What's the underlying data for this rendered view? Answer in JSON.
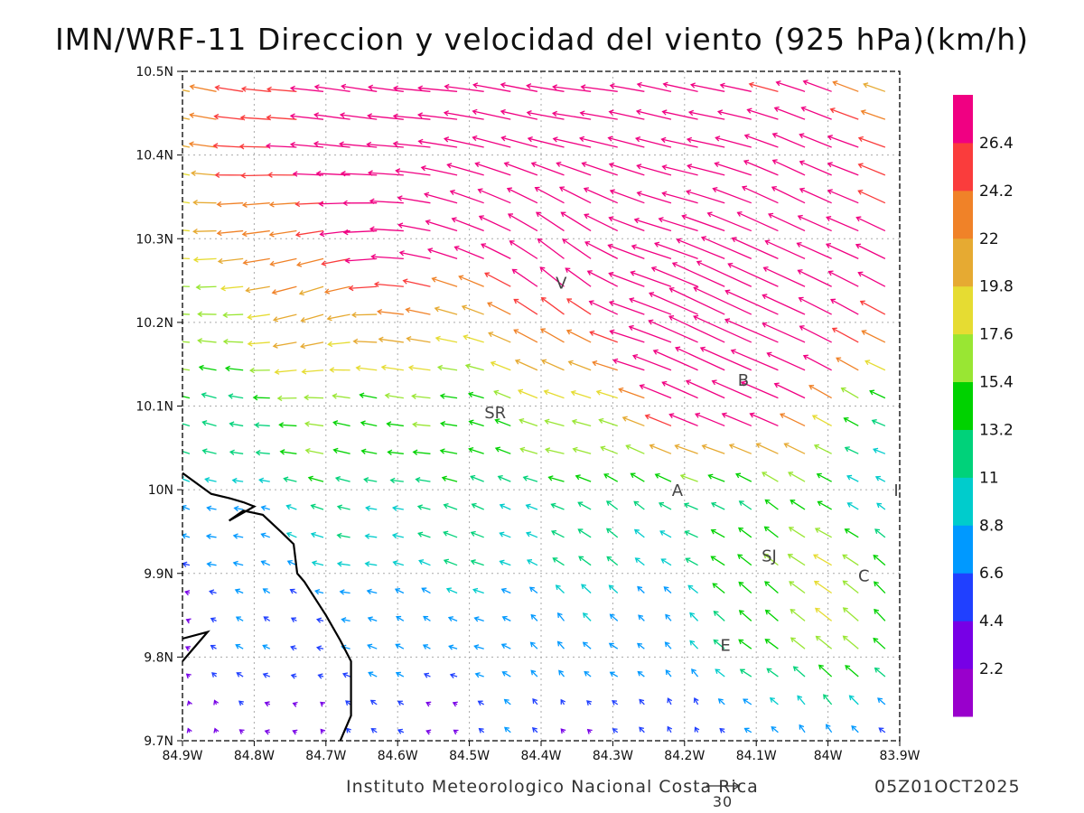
{
  "title": "IMN/WRF-11 Direccion y velocidad del viento (925 hPa)(km/h)",
  "footer": {
    "credit": "Instituto Meteorologico Nacional Costa Rica",
    "timestamp": "05Z01OCT2025",
    "reference_vector": "30"
  },
  "map": {
    "lon_range": [
      -84.9,
      -83.9
    ],
    "lat_range": [
      9.7,
      10.5
    ],
    "x_ticks": [
      {
        "lon": -84.9,
        "label": "84.9W"
      },
      {
        "lon": -84.8,
        "label": "84.8W"
      },
      {
        "lon": -84.7,
        "label": "84.7W"
      },
      {
        "lon": -84.6,
        "label": "84.6W"
      },
      {
        "lon": -84.5,
        "label": "84.5W"
      },
      {
        "lon": -84.4,
        "label": "84.4W"
      },
      {
        "lon": -84.3,
        "label": "84.3W"
      },
      {
        "lon": -84.2,
        "label": "84.2W"
      },
      {
        "lon": -84.1,
        "label": "84.1W"
      },
      {
        "lon": -84.0,
        "label": "84W"
      },
      {
        "lon": -83.9,
        "label": "83.9W"
      }
    ],
    "y_ticks": [
      {
        "lat": 9.7,
        "label": "9.7N"
      },
      {
        "lat": 9.8,
        "label": "9.8N"
      },
      {
        "lat": 9.9,
        "label": "9.9N"
      },
      {
        "lat": 10.0,
        "label": "10N"
      },
      {
        "lat": 10.1,
        "label": "10.1N"
      },
      {
        "lat": 10.2,
        "label": "10.2N"
      },
      {
        "lat": 10.3,
        "label": "10.3N"
      },
      {
        "lat": 10.4,
        "label": "10.4N"
      },
      {
        "lat": 10.5,
        "label": "10.5N"
      }
    ],
    "cities": [
      {
        "label": "V",
        "lon": -84.372,
        "lat": 10.248
      },
      {
        "label": "SR",
        "lon": -84.464,
        "lat": 10.093
      },
      {
        "label": "B",
        "lon": -84.118,
        "lat": 10.132
      },
      {
        "label": "A",
        "lon": -84.21,
        "lat": 10.0
      },
      {
        "label": "I",
        "lon": -83.905,
        "lat": 10.0
      },
      {
        "label": "SJ",
        "lon": -84.082,
        "lat": 9.922
      },
      {
        "label": "C",
        "lon": -83.95,
        "lat": 9.898
      },
      {
        "label": "E",
        "lon": -84.143,
        "lat": 9.815
      }
    ],
    "coastline": [
      [
        -84.9,
        10.02
      ],
      [
        -84.86,
        9.995
      ],
      [
        -84.835,
        9.99
      ],
      [
        -84.815,
        9.985
      ],
      [
        -84.8,
        9.98
      ],
      [
        -84.835,
        9.963
      ],
      [
        -84.815,
        9.975
      ],
      [
        -84.788,
        9.97
      ],
      [
        -84.763,
        9.95
      ],
      [
        -84.745,
        9.935
      ],
      [
        -84.74,
        9.9
      ],
      [
        -84.73,
        9.89
      ],
      [
        -84.715,
        9.87
      ],
      [
        -84.7,
        9.85
      ],
      [
        -84.68,
        9.82
      ],
      [
        -84.665,
        9.795
      ],
      [
        -84.665,
        9.73
      ],
      [
        -84.68,
        9.7
      ]
    ],
    "coastline_sw": [
      [
        -84.9,
        9.822
      ],
      [
        -84.865,
        9.83
      ],
      [
        -84.885,
        9.81
      ],
      [
        -84.9,
        9.795
      ]
    ],
    "wind_fields": [
      {
        "lon1": -84.9,
        "lat1": 10.0,
        "lon2": -83.9,
        "lat2": 10.5,
        "u": -6,
        "v": 3
      },
      {
        "lon": -84.45,
        "lat": 10.46,
        "u": -18,
        "v": 0.5,
        "r": 0.55,
        "w": 1.6
      },
      {
        "lon": -84.0,
        "lat": 10.3,
        "u": -7,
        "v": 8,
        "r": 0.2,
        "w": 1.2
      },
      {
        "lon": -84.12,
        "lat": 10.18,
        "u": -18,
        "v": 10,
        "r": 0.11,
        "w": 1.5
      },
      {
        "lon": -84.38,
        "lat": 10.28,
        "u": 6,
        "v": 12,
        "r": 0.13,
        "w": 1.1
      },
      {
        "lon": -84.73,
        "lat": 10.26,
        "u": 3,
        "v": -10,
        "r": 0.12,
        "w": 1.0
      },
      {
        "lon": -84.5,
        "lat": 10.15,
        "u": 7,
        "v": -1,
        "r": 0.15,
        "w": 0.9
      },
      {
        "lon": -84.0,
        "lat": 9.85,
        "u": -10,
        "v": 9,
        "r": 0.14,
        "w": 1.0
      },
      {
        "lon": -84.3,
        "lat": 9.9,
        "u": 2,
        "v": 5,
        "r": 0.18,
        "w": 0.8
      }
    ]
  },
  "colorbar": {
    "colors": [
      "#9900cc",
      "#7700e6",
      "#2040ff",
      "#0099ff",
      "#00cccc",
      "#00d27a",
      "#00d200",
      "#99e633",
      "#e6dc32",
      "#e6aa32",
      "#f08228",
      "#fa3c3c",
      "#f00082"
    ],
    "labels": [
      "2.2",
      "4.4",
      "6.6",
      "8.8",
      "11",
      "13.2",
      "15.4",
      "17.6",
      "19.8",
      "22",
      "24.2",
      "26.4"
    ]
  }
}
